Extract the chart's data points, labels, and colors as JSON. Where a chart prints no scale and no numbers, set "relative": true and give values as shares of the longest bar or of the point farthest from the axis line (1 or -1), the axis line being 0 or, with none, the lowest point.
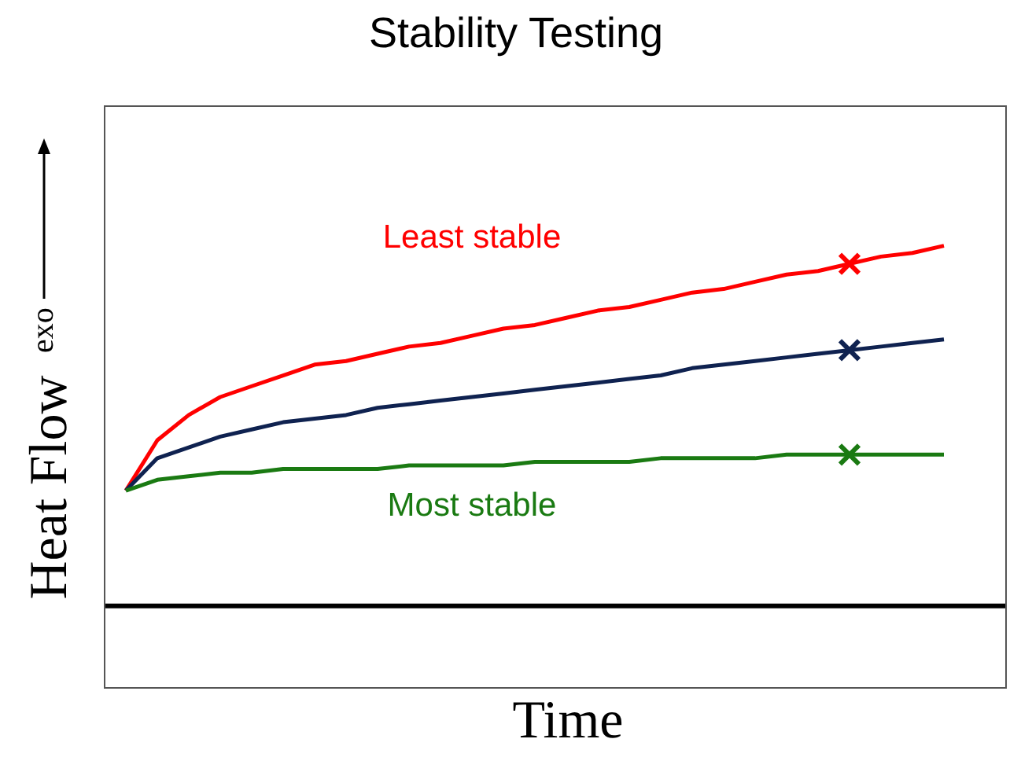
{
  "chart_data": {
    "type": "line",
    "title": "Stability Testing",
    "xlabel": "Time",
    "ylabel": "Heat Flow",
    "annotations": [
      "exo"
    ],
    "relative": true,
    "legend": false,
    "grid": false,
    "marker": "none",
    "line_style": "solid",
    "categories": [
      null,
      null,
      null,
      null,
      null,
      null,
      null,
      null,
      null,
      null,
      null,
      null,
      null,
      null,
      null,
      null,
      null,
      null,
      null,
      null,
      null,
      null,
      null,
      null,
      null,
      null,
      null
    ],
    "series": [
      {
        "name": "Least stable",
        "color": "#ff0000",
        "values": [
          0.32,
          0.46,
          0.53,
          0.58,
          0.61,
          0.64,
          0.67,
          0.68,
          0.7,
          0.72,
          0.73,
          0.75,
          0.77,
          0.78,
          0.8,
          0.82,
          0.83,
          0.85,
          0.87,
          0.88,
          0.9,
          0.92,
          0.93,
          0.95,
          0.97,
          0.98,
          1
        ]
      },
      {
        "color": "#0f2250",
        "values": [
          0.32,
          0.41,
          0.44,
          0.47,
          0.49,
          0.51,
          0.52,
          0.53,
          0.55,
          0.56,
          0.57,
          0.58,
          0.59,
          0.6,
          0.61,
          0.62,
          0.63,
          0.64,
          0.66,
          0.67,
          0.68,
          0.69,
          0.7,
          0.71,
          0.72,
          0.73,
          0.74
        ]
      },
      {
        "name": "Most stable",
        "color": "#1a7a12",
        "values": [
          0.32,
          0.35,
          0.36,
          0.37,
          0.37,
          0.38,
          0.38,
          0.38,
          0.38,
          0.39,
          0.39,
          0.39,
          0.39,
          0.4,
          0.4,
          0.4,
          0.4,
          0.41,
          0.41,
          0.41,
          0.41,
          0.42,
          0.42,
          0.42,
          0.42,
          0.42,
          0.42
        ]
      }
    ]
  }
}
